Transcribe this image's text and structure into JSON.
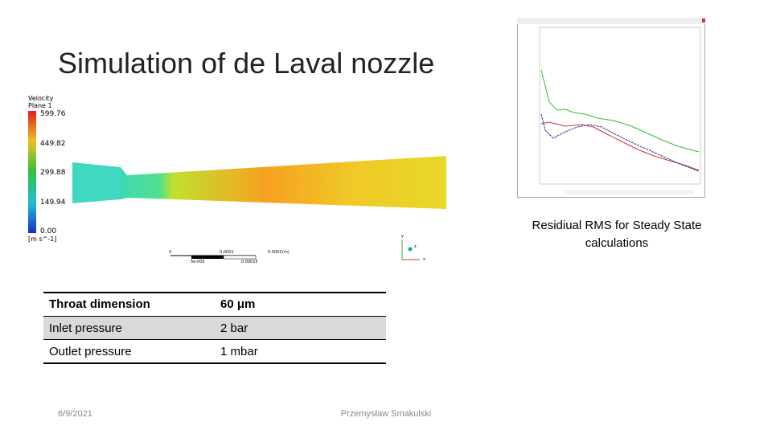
{
  "header": {
    "title": "Simulation of de Laval nozzle"
  },
  "contour": {
    "variable": "Velocity",
    "plane": "Plane 1",
    "legend_labels": [
      "599.76",
      "449.82",
      "299.88",
      "149.94",
      "0.00"
    ],
    "unit": "[m s^-1]",
    "scale_top": [
      "0",
      "0.0001",
      "0.0002",
      "(m)"
    ],
    "scale_bottom": [
      "5e-005",
      "0.00015"
    ],
    "axes": [
      "y",
      "z",
      "x"
    ]
  },
  "residuals": {
    "caption_lines": [
      "Residiual RMS for Steady State",
      "calculations"
    ]
  },
  "table": {
    "rows": [
      [
        "Throat dimension",
        "60 μm"
      ],
      [
        "Inlet pressure",
        "2 bar"
      ],
      [
        "Outlet pressure",
        "1 mbar"
      ]
    ]
  },
  "footer": {
    "date": "6/9/2021",
    "author": "Przemysław Smakulski"
  }
}
